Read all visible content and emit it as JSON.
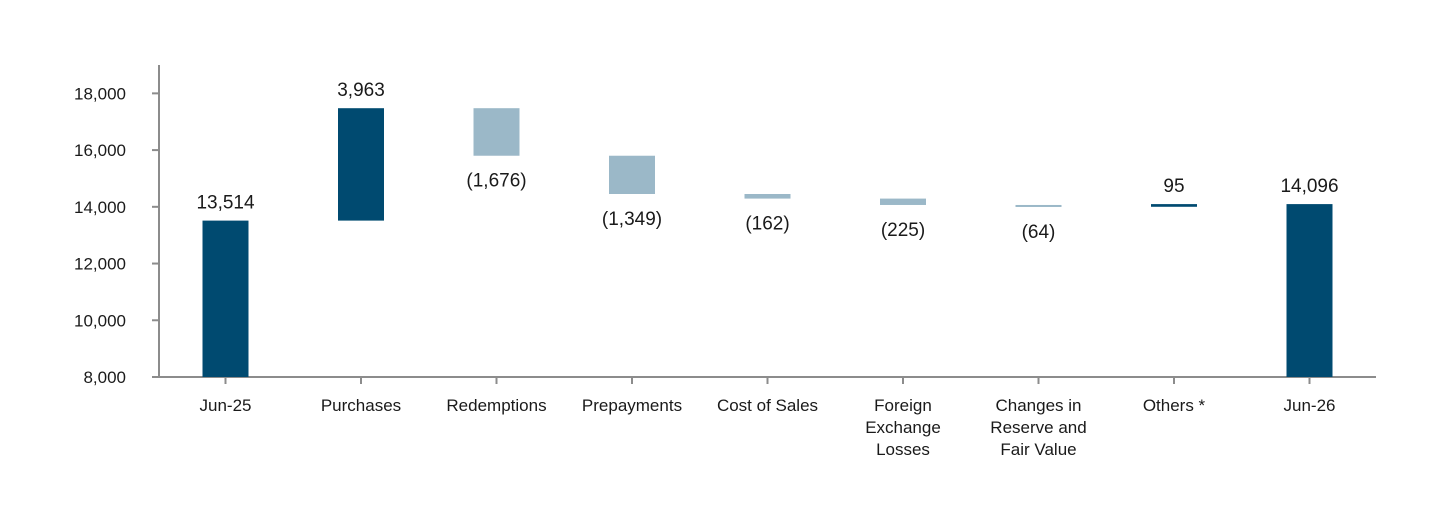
{
  "chart_data": {
    "type": "bar",
    "subtype": "waterfall",
    "categories": [
      [
        "Jun-25"
      ],
      [
        "Purchases"
      ],
      [
        "Redemptions"
      ],
      [
        "Prepayments"
      ],
      [
        "Cost of Sales"
      ],
      [
        "Foreign",
        "Exchange",
        "Losses"
      ],
      [
        "Changes in",
        "Reserve and",
        "Fair Value"
      ],
      [
        "Others *"
      ],
      [
        "Jun-26"
      ]
    ],
    "bars": [
      {
        "kind": "total",
        "start": 8000,
        "end": 13514,
        "label": "13,514"
      },
      {
        "kind": "increase",
        "start": 13514,
        "end": 17477,
        "label": "3,963"
      },
      {
        "kind": "decrease",
        "start": 17477,
        "end": 15801,
        "label": "(1,676)"
      },
      {
        "kind": "decrease",
        "start": 15801,
        "end": 14452,
        "label": "(1,349)"
      },
      {
        "kind": "decrease",
        "start": 14452,
        "end": 14290,
        "label": "(162)"
      },
      {
        "kind": "decrease",
        "start": 14290,
        "end": 14065,
        "label": "(225)"
      },
      {
        "kind": "decrease",
        "start": 14065,
        "end": 14001,
        "label": "(64)"
      },
      {
        "kind": "increase",
        "start": 14001,
        "end": 14096,
        "label": "95"
      },
      {
        "kind": "total",
        "start": 8000,
        "end": 14096,
        "label": "14,096"
      }
    ],
    "ylim": [
      8000,
      19000
    ],
    "yticks": [
      8000,
      10000,
      12000,
      14000,
      16000,
      18000
    ],
    "ytick_labels": [
      "8,000",
      "10,000",
      "12,000",
      "14,000",
      "16,000",
      "18,000"
    ],
    "colors": {
      "total": "#004a70",
      "increase": "#004a70",
      "decrease": "#9bb8c8",
      "axis": "#8c8c8c",
      "text": "#1a1a1a"
    },
    "grid": false,
    "legend": "none"
  }
}
